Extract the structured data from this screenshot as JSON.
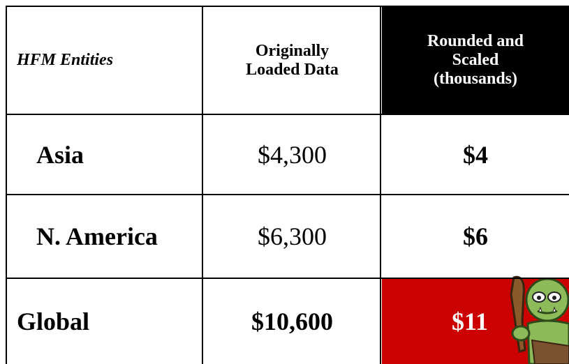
{
  "table": {
    "header": [
      "HFM Entities",
      "Originally Loaded Data",
      "Rounded and Scaled (thousands)"
    ],
    "rows": [
      [
        "Asia",
        "$4,300",
        "$4"
      ],
      [
        "N. America",
        "$6,300",
        "$6"
      ],
      [
        "Global",
        "$10,600",
        "$11"
      ]
    ]
  }
}
